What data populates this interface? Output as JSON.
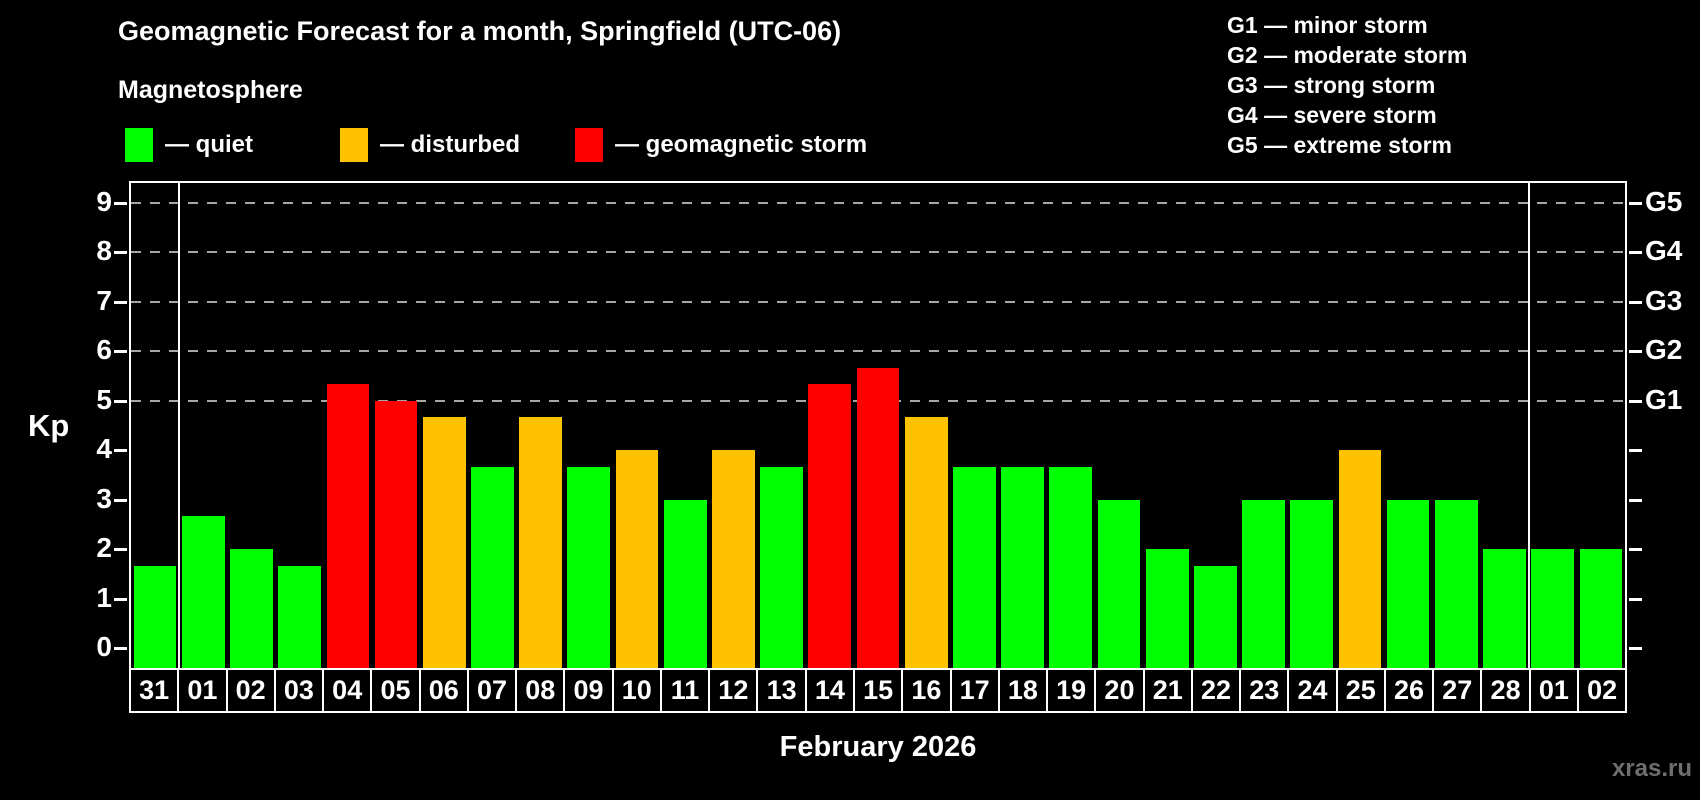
{
  "title": "Geomagnetic Forecast for a month, Springfield (UTC-06)",
  "subtitle": "Magnetosphere",
  "legend": {
    "items": [
      {
        "key": "quiet",
        "label": "— quiet",
        "color": "#00ff00"
      },
      {
        "key": "disturbed",
        "label": "— disturbed",
        "color": "#ffc200"
      },
      {
        "key": "storm",
        "label": "— geomagnetic storm",
        "color": "#ff0000"
      }
    ]
  },
  "g_scale_legend": {
    "lines": [
      "G1 — minor storm",
      "G2 — moderate storm",
      "G3 — strong storm",
      "G4 — severe storm",
      "G5 — extreme storm"
    ]
  },
  "watermark": "xras.ru",
  "chart_data": {
    "type": "bar",
    "title": "Geomagnetic Forecast for a month, Springfield (UTC-06)",
    "xlabel": "February 2026",
    "ylabel": "Kp",
    "ylim": [
      -0.4,
      9.4
    ],
    "yticks": [
      0,
      1,
      2,
      3,
      4,
      5,
      6,
      7,
      8,
      9
    ],
    "gridlines_at_kp": [
      5,
      6,
      7,
      8,
      9
    ],
    "right_axis": {
      "labels": [
        "G1",
        "G2",
        "G3",
        "G4",
        "G5"
      ],
      "at_kp": [
        5,
        6,
        7,
        8,
        9
      ]
    },
    "categories": [
      "31",
      "01",
      "02",
      "03",
      "04",
      "05",
      "06",
      "07",
      "08",
      "09",
      "10",
      "11",
      "12",
      "13",
      "14",
      "15",
      "16",
      "17",
      "18",
      "19",
      "20",
      "21",
      "22",
      "23",
      "24",
      "25",
      "26",
      "27",
      "28",
      "01",
      "02"
    ],
    "values": [
      1.67,
      2.67,
      2,
      1.67,
      5.33,
      5,
      4.67,
      3.67,
      4.67,
      3.67,
      4,
      3,
      4,
      3.67,
      5.33,
      5.67,
      4.67,
      3.67,
      3.67,
      3.67,
      3,
      2,
      1.67,
      3,
      3,
      4,
      3,
      3,
      2,
      2,
      2
    ],
    "statuses": [
      "quiet",
      "quiet",
      "quiet",
      "quiet",
      "storm",
      "storm",
      "disturbed",
      "quiet",
      "disturbed",
      "quiet",
      "disturbed",
      "quiet",
      "disturbed",
      "quiet",
      "storm",
      "storm",
      "disturbed",
      "quiet",
      "quiet",
      "quiet",
      "quiet",
      "quiet",
      "quiet",
      "quiet",
      "quiet",
      "disturbed",
      "quiet",
      "quiet",
      "quiet",
      "quiet",
      "quiet"
    ],
    "month_separators_after_index": [
      0,
      28
    ],
    "grid_color": "#a6a6a6",
    "axis_color": "#ffffff",
    "background": "#000000",
    "legend_position": "top"
  }
}
